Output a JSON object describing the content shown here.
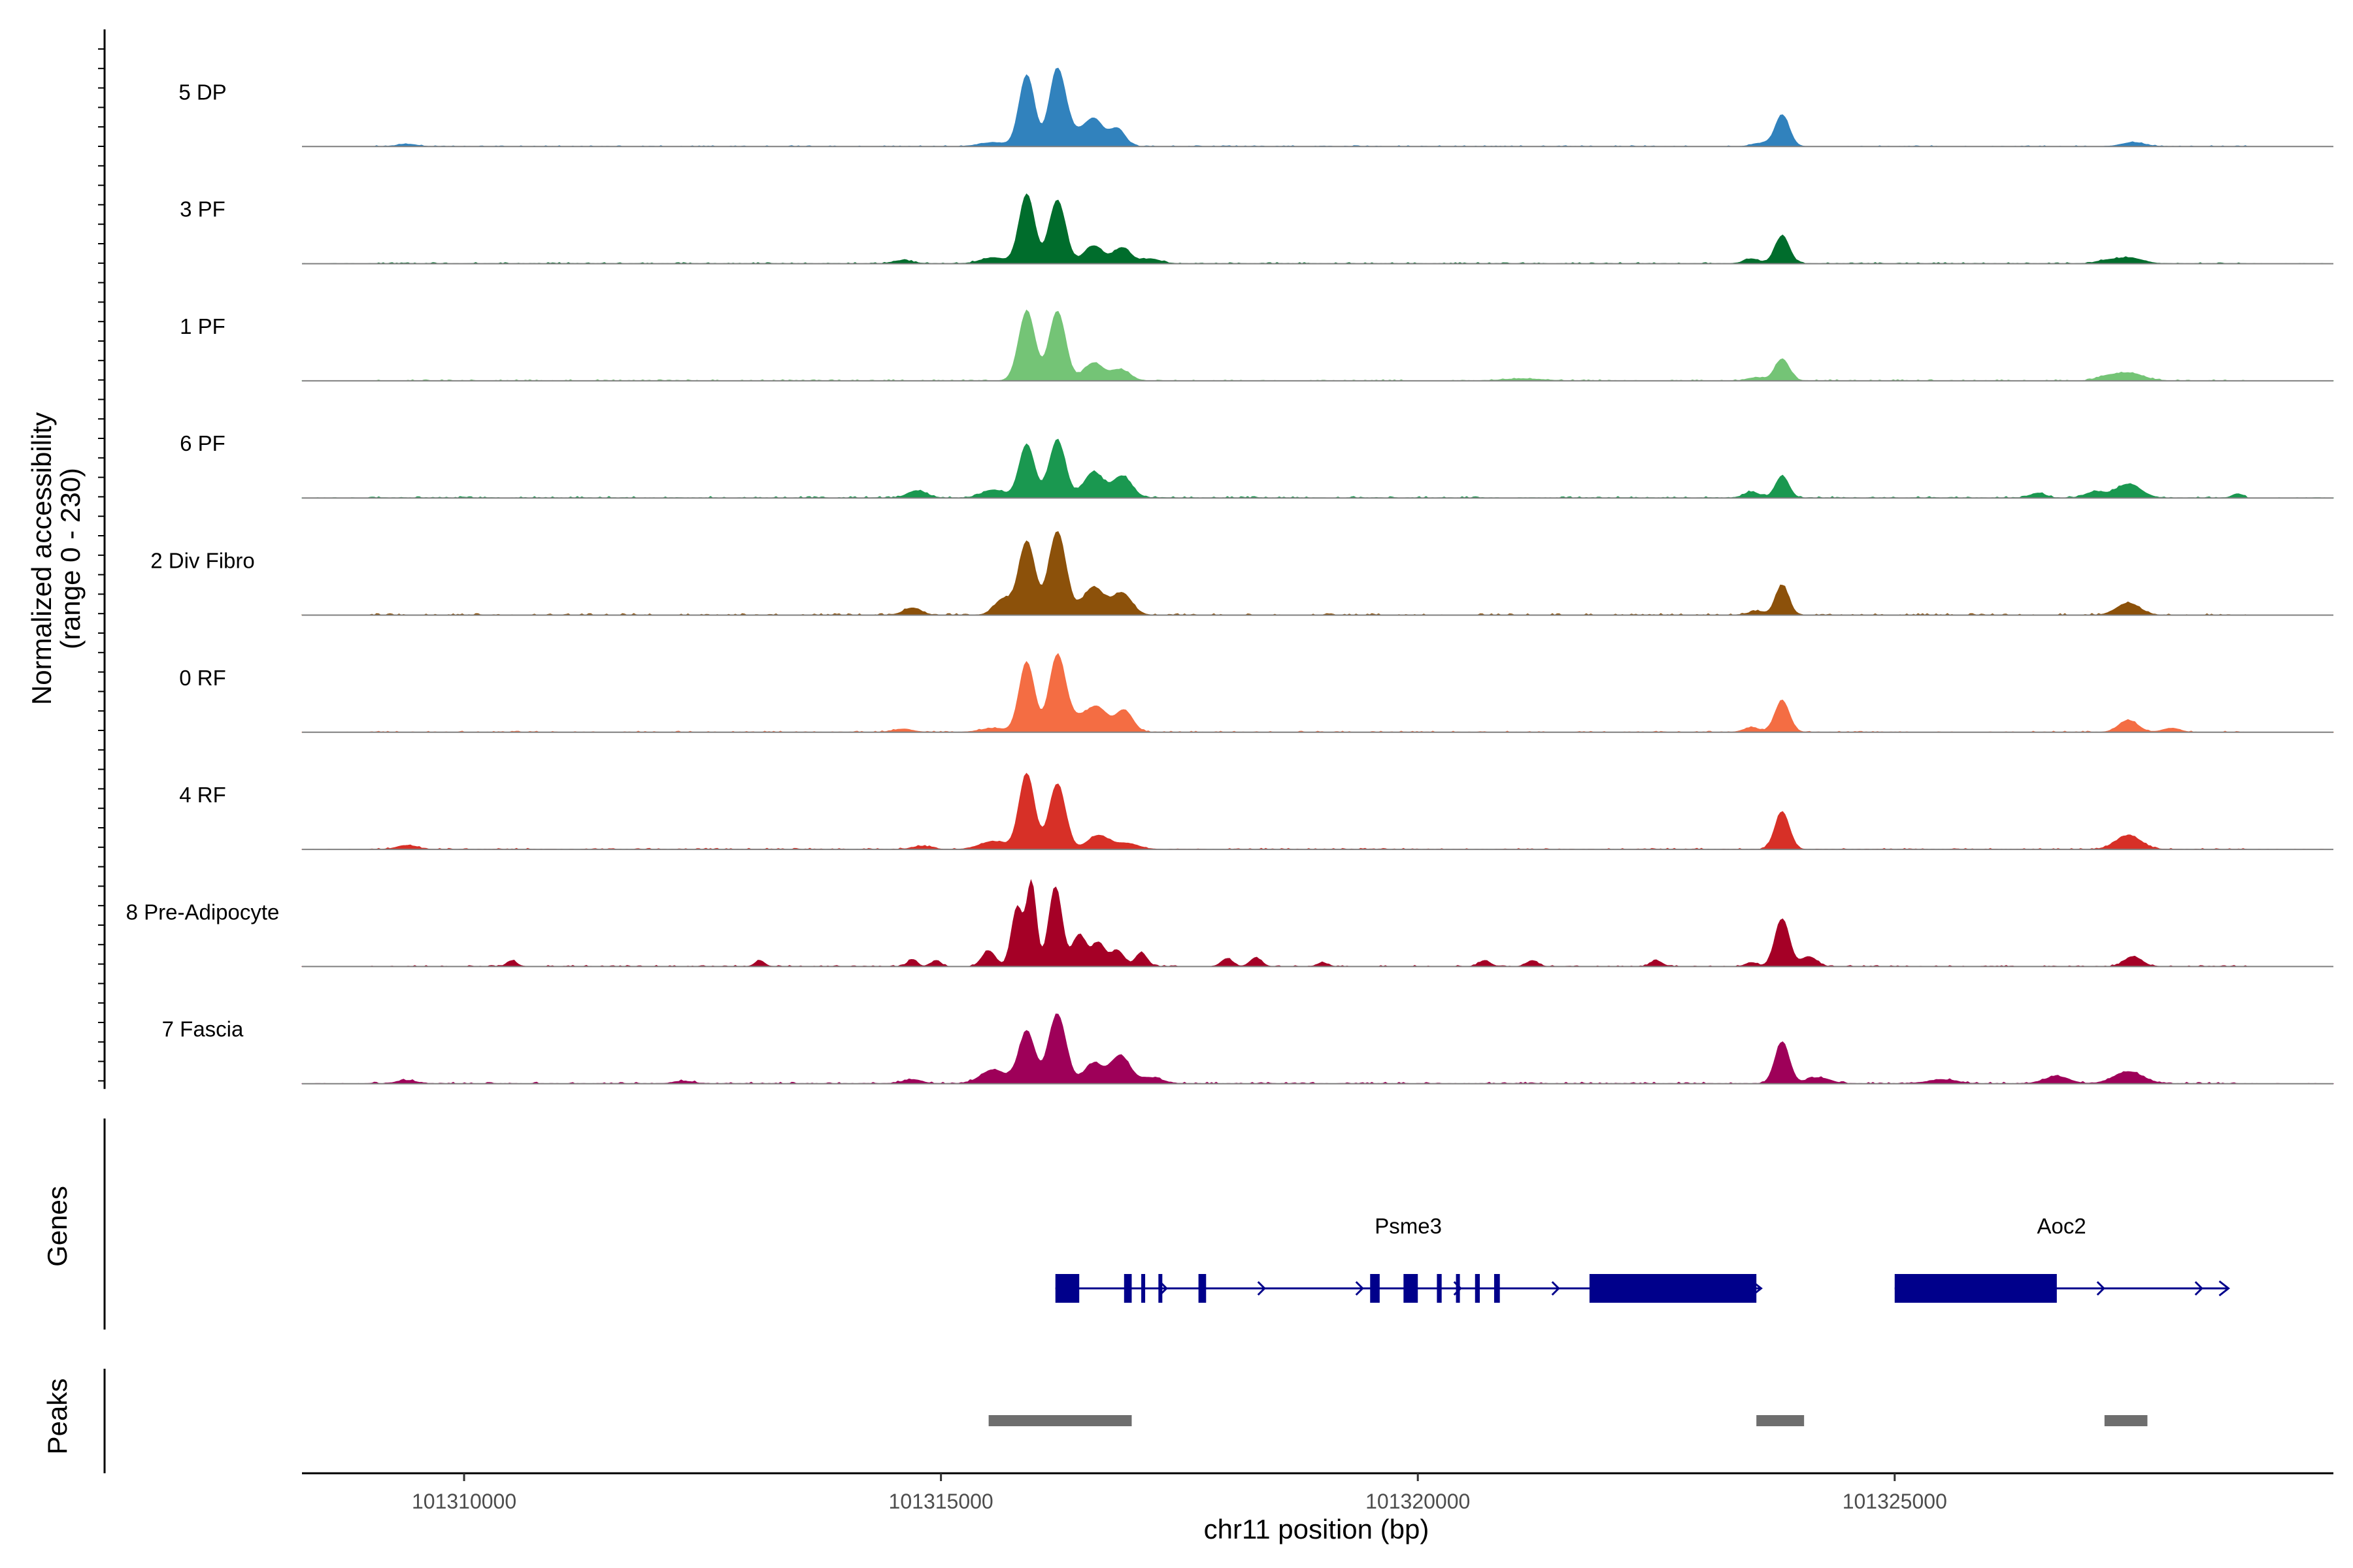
{
  "chart_data": {
    "type": "area",
    "title": "",
    "ylabel_lines": [
      "Normalized accessibility",
      "(range 0 - 230)"
    ],
    "y_range": [
      0,
      230
    ],
    "xlabel": "chr11 position (bp)",
    "x_range": [
      101308300,
      101329600
    ],
    "x_ticks": [
      101310000,
      101315000,
      101320000,
      101325000
    ],
    "x_tick_labels": [
      "101310000",
      "101315000",
      "101320000",
      "101325000"
    ],
    "tracks": [
      {
        "name": "5 DP",
        "color": "#3182BD",
        "peaks": [
          [
            101315900,
            180,
            80
          ],
          [
            101316220,
            190,
            85
          ],
          [
            101316620,
            55,
            90
          ],
          [
            101316850,
            45,
            80
          ],
          [
            101316450,
            35,
            130
          ],
          [
            101315550,
            10,
            140
          ],
          [
            101323820,
            80,
            75
          ],
          [
            101323580,
            8,
            80
          ],
          [
            101327500,
            10,
            120
          ],
          [
            101309400,
            6,
            100
          ]
        ],
        "noise": 2.5
      },
      {
        "name": "3 PF",
        "color": "#006D2C",
        "peaks": [
          [
            101315900,
            175,
            80
          ],
          [
            101316220,
            160,
            85
          ],
          [
            101316600,
            45,
            100
          ],
          [
            101316900,
            40,
            90
          ],
          [
            101317200,
            12,
            100
          ],
          [
            101315550,
            15,
            130
          ],
          [
            101314600,
            8,
            100
          ],
          [
            101323820,
            70,
            75
          ],
          [
            101323500,
            12,
            80
          ],
          [
            101327450,
            15,
            140
          ],
          [
            101327200,
            6,
            100
          ]
        ],
        "noise": 3
      },
      {
        "name": "1 PF",
        "color": "#74C476",
        "peaks": [
          [
            101315900,
            175,
            85
          ],
          [
            101316220,
            175,
            85
          ],
          [
            101316600,
            45,
            100
          ],
          [
            101316880,
            28,
            100
          ],
          [
            101323820,
            55,
            75
          ],
          [
            101323550,
            8,
            90
          ],
          [
            101327450,
            20,
            150
          ],
          [
            101327200,
            8,
            100
          ],
          [
            101321100,
            5,
            200
          ]
        ],
        "noise": 3
      },
      {
        "name": "6 PF",
        "color": "#1A9850",
        "peaks": [
          [
            101315900,
            135,
            80
          ],
          [
            101316220,
            145,
            85
          ],
          [
            101316600,
            65,
            100
          ],
          [
            101316900,
            55,
            100
          ],
          [
            101315550,
            20,
            120
          ],
          [
            101314750,
            18,
            100
          ],
          [
            101323820,
            55,
            70
          ],
          [
            101323500,
            15,
            80
          ],
          [
            101327450,
            35,
            130
          ],
          [
            101327100,
            15,
            100
          ],
          [
            101328600,
            10,
            60
          ],
          [
            101326500,
            12,
            80
          ]
        ],
        "noise": 4
      },
      {
        "name": "2 Div Fibro",
        "color": "#8C510A",
        "peaks": [
          [
            101315900,
            185,
            85
          ],
          [
            101316220,
            210,
            90
          ],
          [
            101316600,
            70,
            110
          ],
          [
            101316900,
            55,
            100
          ],
          [
            101315650,
            40,
            90
          ],
          [
            101314700,
            18,
            90
          ],
          [
            101323820,
            75,
            70
          ],
          [
            101323550,
            10,
            80
          ],
          [
            101327450,
            30,
            120
          ]
        ],
        "noise": 4
      },
      {
        "name": "0 RF",
        "color": "#F46D43",
        "peaks": [
          [
            101315900,
            175,
            80
          ],
          [
            101316220,
            190,
            85
          ],
          [
            101316650,
            55,
            100
          ],
          [
            101316920,
            55,
            90
          ],
          [
            101316450,
            35,
            120
          ],
          [
            101315550,
            10,
            130
          ],
          [
            101323820,
            80,
            75
          ],
          [
            101323500,
            12,
            80
          ],
          [
            101327450,
            30,
            100
          ],
          [
            101327900,
            10,
            90
          ],
          [
            101314600,
            8,
            100
          ]
        ],
        "noise": 3
      },
      {
        "name": "4 RF",
        "color": "#D73027",
        "peaks": [
          [
            101315900,
            190,
            80
          ],
          [
            101316220,
            165,
            85
          ],
          [
            101316650,
            35,
            110
          ],
          [
            101315550,
            20,
            140
          ],
          [
            101316950,
            15,
            120
          ],
          [
            101323820,
            95,
            75
          ],
          [
            101327450,
            35,
            130
          ],
          [
            101309400,
            10,
            100
          ],
          [
            101314800,
            8,
            100
          ]
        ],
        "noise": 3
      },
      {
        "name": "8 Pre-Adipocyte",
        "color": "#A50026",
        "peaks": [
          [
            101315800,
            150,
            60
          ],
          [
            101315950,
            210,
            50
          ],
          [
            101316200,
            200,
            70
          ],
          [
            101316450,
            80,
            70
          ],
          [
            101316650,
            60,
            70
          ],
          [
            101316850,
            40,
            70
          ],
          [
            101317100,
            35,
            60
          ],
          [
            101315500,
            40,
            70
          ],
          [
            101314950,
            15,
            50
          ],
          [
            101314700,
            18,
            50
          ],
          [
            101323820,
            120,
            75
          ],
          [
            101324100,
            25,
            80
          ],
          [
            101323500,
            10,
            60
          ],
          [
            101310500,
            15,
            50
          ],
          [
            101313100,
            15,
            50
          ],
          [
            101318000,
            20,
            60
          ],
          [
            101318300,
            22,
            60
          ],
          [
            101319000,
            10,
            50
          ],
          [
            101320700,
            15,
            60
          ],
          [
            101321200,
            15,
            60
          ],
          [
            101322500,
            15,
            60
          ],
          [
            101327500,
            25,
            90
          ]
        ],
        "noise": 3
      },
      {
        "name": "7 Fascia",
        "color": "#9E0059",
        "peaks": [
          [
            101315900,
            130,
            85
          ],
          [
            101316220,
            175,
            90
          ],
          [
            101316600,
            50,
            100
          ],
          [
            101316880,
            70,
            100
          ],
          [
            101315550,
            35,
            130
          ],
          [
            101317200,
            15,
            120
          ],
          [
            101314700,
            10,
            100
          ],
          [
            101323820,
            105,
            75
          ],
          [
            101324200,
            15,
            120
          ],
          [
            101325500,
            10,
            150
          ],
          [
            101326700,
            18,
            130
          ],
          [
            101327450,
            30,
            150
          ],
          [
            101309400,
            8,
            100
          ],
          [
            101312300,
            6,
            100
          ]
        ],
        "noise": 4
      }
    ],
    "genes_panel_label": "Genes",
    "genes": [
      {
        "name": "Psme3",
        "color": "#00008B",
        "strand": "+",
        "start": 101316200,
        "end": 101323600,
        "exons": [
          [
            101316200,
            101316450
          ],
          [
            101316920,
            101317000
          ],
          [
            101317100,
            101317140
          ],
          [
            101317280,
            101317320
          ],
          [
            101317700,
            101317780
          ],
          [
            101319500,
            101319600
          ],
          [
            101319850,
            101320000
          ],
          [
            101320200,
            101320250
          ],
          [
            101320400,
            101320440
          ],
          [
            101320600,
            101320650
          ],
          [
            101320800,
            101320860
          ],
          [
            101321800,
            101323550
          ]
        ]
      },
      {
        "name": "Aoc2",
        "color": "#00008B",
        "strand": "+",
        "start": 101325000,
        "end": 101328500,
        "exons": [
          [
            101325000,
            101326700
          ]
        ]
      }
    ],
    "peaks_panel_label": "Peaks",
    "peak_regions": [
      [
        101315500,
        101317000
      ],
      [
        101323550,
        101324050
      ],
      [
        101327200,
        101327650
      ]
    ],
    "peak_color": "#6E6E6E"
  }
}
